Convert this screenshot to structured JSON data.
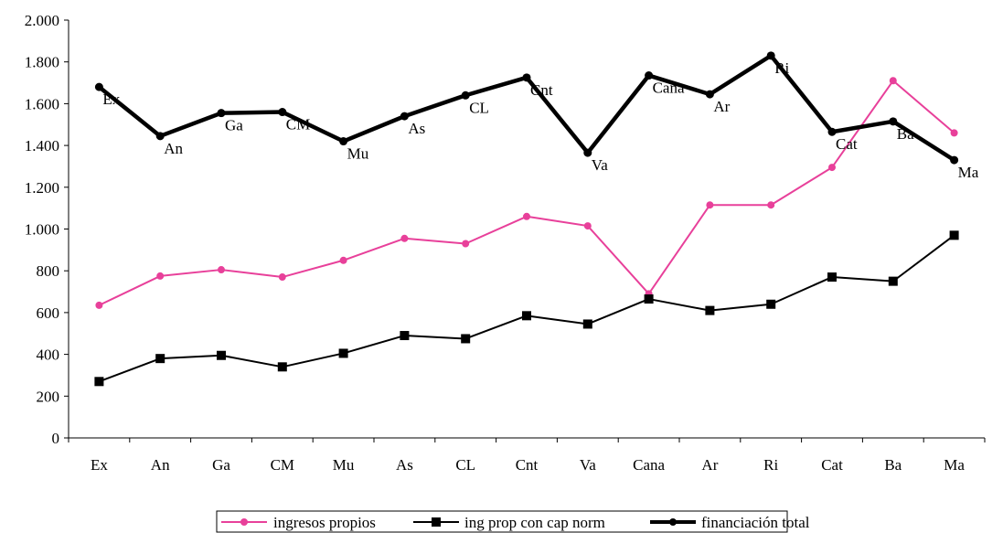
{
  "chart_data": {
    "type": "line",
    "title": "",
    "xlabel": "",
    "ylabel": "",
    "categories": [
      "Ex",
      "An",
      "Ga",
      "CM",
      "Mu",
      "As",
      "CL",
      "Cnt",
      "Va",
      "Cana",
      "Ar",
      "Ri",
      "Cat",
      "Ba",
      "Ma"
    ],
    "ylim": [
      0,
      2000
    ],
    "yticks": [
      0,
      200,
      400,
      600,
      800,
      1000,
      1200,
      1400,
      1600,
      1800,
      2000
    ],
    "ytick_labels": [
      "0",
      "200",
      "400",
      "600",
      "800",
      "1.000",
      "1.200",
      "1.400",
      "1.600",
      "1.800",
      "2.000"
    ],
    "grid": false,
    "legend_position": "bottom",
    "series": [
      {
        "name": "ingresos propios",
        "color": "#e8409a",
        "marker": "circle",
        "values": [
          635,
          775,
          805,
          770,
          850,
          955,
          930,
          1060,
          1015,
          690,
          1115,
          1115,
          1295,
          1710,
          1460
        ]
      },
      {
        "name": "ing prop con cap norm",
        "color": "#000000",
        "marker": "square",
        "values": [
          270,
          380,
          395,
          340,
          405,
          490,
          475,
          585,
          545,
          665,
          610,
          640,
          770,
          750,
          970
        ]
      },
      {
        "name": "financiación total",
        "color": "#000000",
        "marker": "circle",
        "thick": true,
        "values": [
          1680,
          1445,
          1555,
          1560,
          1420,
          1540,
          1640,
          1725,
          1365,
          1735,
          1645,
          1830,
          1465,
          1515,
          1330
        ],
        "point_labels": [
          "Ex",
          "An",
          "Ga",
          "CM",
          "Mu",
          "As",
          "CL",
          "Cnt",
          "Va",
          "Cana",
          "Ar",
          "Ri",
          "Cat",
          "Ba",
          "Ma"
        ]
      }
    ]
  }
}
